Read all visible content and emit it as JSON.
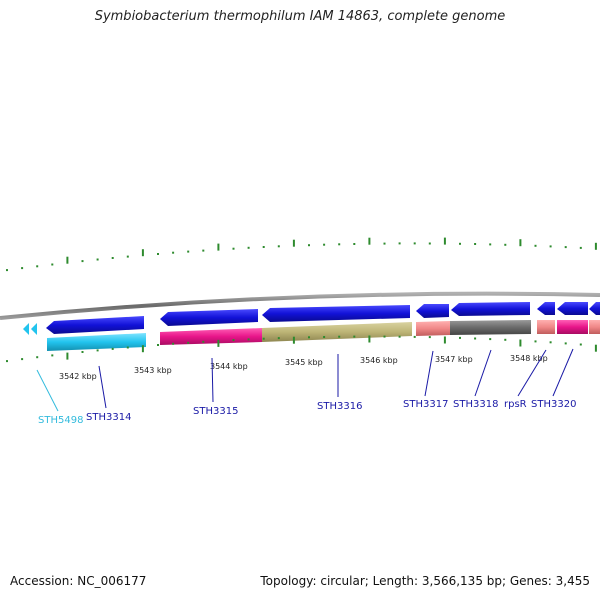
{
  "title": "Symbiobacterium thermophilum IAM 14863, complete genome",
  "footer": {
    "accession": "Accession: NC_006177",
    "stats": "Topology: circular; Length: 3,566,135 bp; Genes: 3,455"
  },
  "colors": {
    "backbone": "#7a7a7a",
    "tick": "#2e8b2e",
    "gene_blue": "#1212d8",
    "cyan": "#22c4ee",
    "magenta": "#e8158a",
    "khaki": "#bdb476",
    "salmon": "#f08888",
    "gray": "#6a6a6a",
    "label_dark": "#1a1aa6",
    "label_cyan": "#33bbdd"
  },
  "scale_labels": [
    "3542 kbp",
    "3543 kbp",
    "3544 kbp",
    "3545 kbp",
    "3546 kbp",
    "3547 kbp",
    "3548 kbp"
  ],
  "gene_labels": [
    "STH5498",
    "STH3314",
    "STH3315",
    "STH3316",
    "STH3317",
    "STH3318",
    "rpsR",
    "STH3320"
  ]
}
